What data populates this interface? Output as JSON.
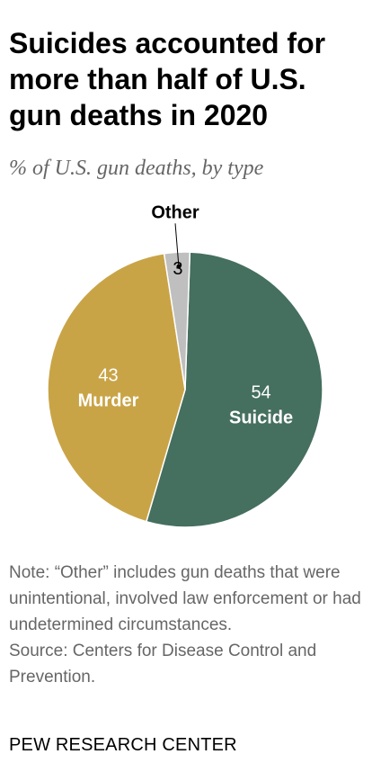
{
  "chart_data": {
    "type": "pie",
    "title": "Suicides accounted for more than half of U.S. gun deaths in 2020",
    "subtitle": "% of U.S. gun deaths, by type",
    "categories": [
      "Suicide",
      "Murder",
      "Other"
    ],
    "values": [
      54,
      43,
      3
    ],
    "value_labels": [
      "54",
      "43",
      "3"
    ],
    "colors": [
      "#456f5f",
      "#c9a447",
      "#bfbfbf"
    ],
    "label_colors": [
      "#ffffff",
      "#ffffff",
      "#000000"
    ],
    "legend": "none"
  },
  "note": {
    "text": "Note: “Other” includes gun deaths that were unintentional, involved law enforcement or had undetermined circumstances.",
    "source": "Source: Centers for Disease Control and Prevention."
  },
  "credit": "PEW RESEARCH CENTER"
}
